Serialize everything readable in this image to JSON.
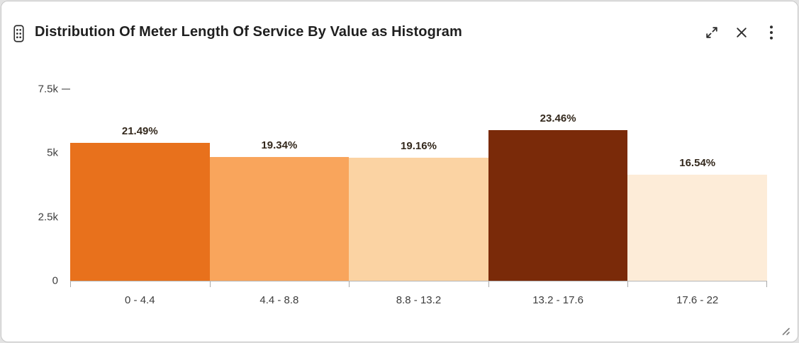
{
  "widget": {
    "title": "Distribution Of Meter Length Of Service By Value as Histogram",
    "actions": {
      "drag_handle_icon": "drag-handle",
      "expand_icon": "expand-fullscreen",
      "close_icon": "close",
      "menu_icon": "kebab-menu"
    }
  },
  "chart_data": {
    "type": "bar",
    "subtype": "histogram",
    "title": "Distribution Of Meter Length Of Service By Value as Histogram",
    "categories": [
      "0 - 4.4",
      "4.4 - 8.8",
      "8.8 - 13.2",
      "13.2 - 17.6",
      "17.6 - 22"
    ],
    "values": [
      5390,
      4855,
      4810,
      5890,
      4150
    ],
    "labels": [
      "21.49%",
      "19.34%",
      "19.16%",
      "23.46%",
      "16.54%"
    ],
    "percentages": [
      21.49,
      19.34,
      19.16,
      23.46,
      16.54
    ],
    "bar_colors": [
      "#e8711c",
      "#f9a55c",
      "#fbd3a3",
      "#7a2a09",
      "#fdecd8"
    ],
    "xlabel": "",
    "ylabel": "",
    "ylim": [
      0,
      7500
    ],
    "yticks": [
      {
        "v": 0,
        "label": "0"
      },
      {
        "v": 2500,
        "label": "2.5k"
      },
      {
        "v": 5000,
        "label": "5k"
      },
      {
        "v": 7500,
        "label": "7.5k"
      }
    ],
    "grid": false,
    "legend": false
  }
}
